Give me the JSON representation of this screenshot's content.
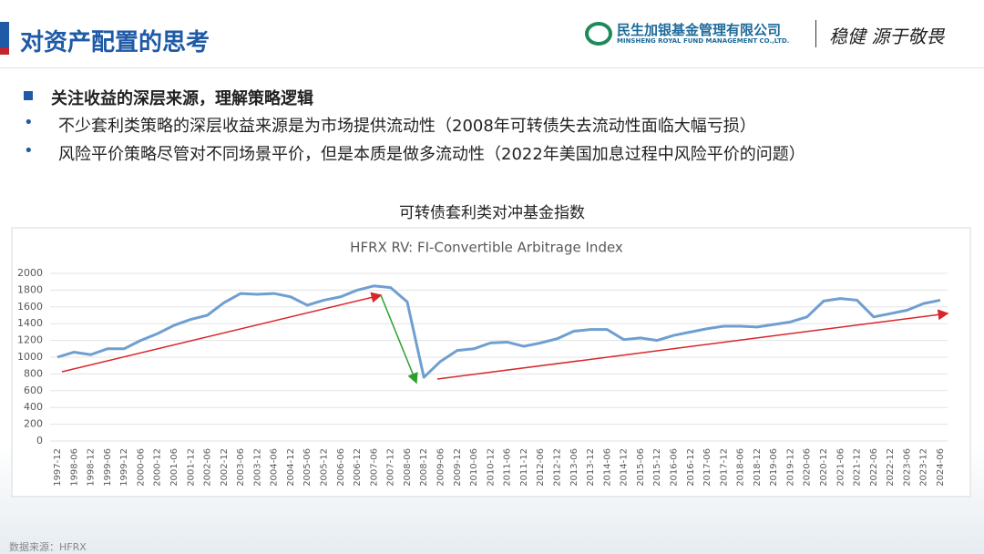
{
  "header": {
    "title": "对资产配置的思考",
    "company_cn": "民生加银基金管理有限公司",
    "company_en": "MINSHENG ROYAL FUND MANAGEMENT CO.,LTD.",
    "slogan": "稳健 源于敬畏"
  },
  "bullets": {
    "heading": "关注收益的深层来源，理解策略逻辑",
    "items": [
      "不少套利类策略的深层收益来源是为市场提供流动性（2008年可转债失去流动性面临大幅亏损）",
      "风险平价策略尽管对不同场景平价，但是本质是做多流动性（2022年美国加息过程中风险平价的问题）"
    ]
  },
  "caption": "可转债套利类对冲基金指数",
  "chart_data": {
    "type": "line",
    "title": "HFRX RV: FI-Convertible Arbitrage Index",
    "categories": [
      "1997-12",
      "1998-06",
      "1998-12",
      "1999-06",
      "1999-12",
      "2000-06",
      "2000-12",
      "2001-06",
      "2001-12",
      "2002-06",
      "2002-12",
      "2003-06",
      "2003-12",
      "2004-06",
      "2004-12",
      "2005-06",
      "2005-12",
      "2006-06",
      "2006-12",
      "2007-06",
      "2007-12",
      "2008-06",
      "2008-12",
      "2009-06",
      "2009-12",
      "2010-06",
      "2010-12",
      "2011-06",
      "2011-12",
      "2012-06",
      "2012-12",
      "2013-06",
      "2013-12",
      "2014-06",
      "2014-12",
      "2015-06",
      "2015-12",
      "2016-06",
      "2016-12",
      "2017-06",
      "2017-12",
      "2018-06",
      "2018-12",
      "2019-06",
      "2019-12",
      "2020-06",
      "2020-12",
      "2021-06",
      "2021-12",
      "2022-06",
      "2022-12",
      "2023-06",
      "2023-12",
      "2024-06"
    ],
    "series": [
      {
        "name": "HFRX RV: FI-Convertible Arbitrage Index",
        "color": "#6f9fd0",
        "values": [
          1000,
          1060,
          1030,
          1100,
          1100,
          1200,
          1280,
          1380,
          1450,
          1500,
          1650,
          1760,
          1750,
          1760,
          1720,
          1620,
          1680,
          1720,
          1800,
          1850,
          1830,
          1660,
          760,
          950,
          1080,
          1100,
          1170,
          1180,
          1130,
          1170,
          1220,
          1310,
          1330,
          1330,
          1210,
          1230,
          1200,
          1260,
          1300,
          1340,
          1370,
          1370,
          1360,
          1390,
          1420,
          1480,
          1670,
          1700,
          1680,
          1480,
          1520,
          1560,
          1640,
          1680
        ]
      }
    ],
    "ylim": [
      0,
      2000
    ],
    "yticks": [
      0,
      200,
      400,
      600,
      800,
      1000,
      1200,
      1400,
      1600,
      1800,
      2000
    ],
    "grid": true
  },
  "source": "数据来源：HFRX"
}
